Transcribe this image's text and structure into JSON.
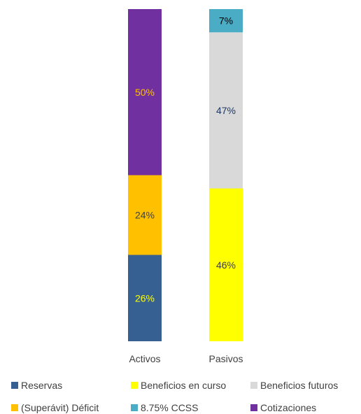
{
  "chart_data": {
    "type": "bar",
    "stacked": true,
    "normalized": true,
    "categories": [
      "Activos",
      "Pasivos"
    ],
    "series": [
      {
        "name": "Reservas",
        "values": [
          26,
          0
        ],
        "color": "#376092",
        "label_color": "#ffff00"
      },
      {
        "name": "Beneficios en curso",
        "values": [
          0,
          46
        ],
        "color": "#ffff00",
        "label_color": "#404040"
      },
      {
        "name": "Beneficios futuros",
        "values": [
          0,
          47
        ],
        "color": "#d9d9d9",
        "label_color": "#1f3864"
      },
      {
        "name": "(Superávit) Déficit",
        "values": [
          24,
          0
        ],
        "color": "#ffc000",
        "label_color": "#404040"
      },
      {
        "name": "8.75% CCSS",
        "values": [
          0,
          7
        ],
        "color": "#4bacc6",
        "label_color": "#000000"
      },
      {
        "name": "Cotizaciones",
        "values": [
          50,
          0
        ],
        "color": "#7030a0",
        "label_color": "#ffc000"
      }
    ],
    "stack_order": [
      [
        "Reservas",
        "(Superávit) Déficit",
        "Cotizaciones"
      ],
      [
        "Beneficios en curso",
        "Beneficios futuros",
        "8.75% CCSS"
      ]
    ],
    "data_labels": [
      [
        "26%",
        "24%",
        "50%"
      ],
      [
        "46%",
        "47%",
        "7%"
      ]
    ],
    "ylim": [
      0,
      100
    ],
    "grid": false,
    "legend_position": "bottom"
  }
}
